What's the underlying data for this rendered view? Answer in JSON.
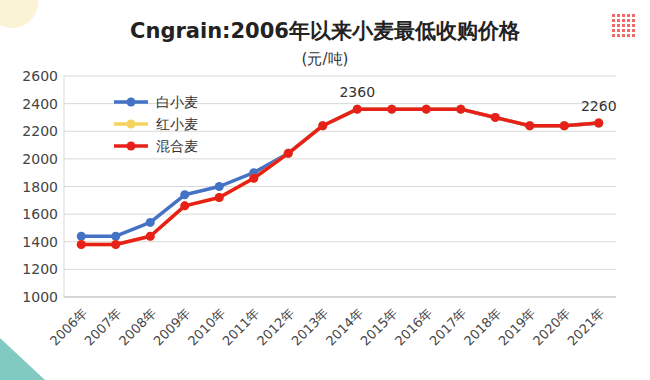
{
  "chart_data": {
    "type": "line",
    "title": "Cngrain:2006年以来小麦最低收购价格",
    "subtitle": "(元/吨)",
    "categories": [
      "2006年",
      "2007年",
      "2008年",
      "2009年",
      "2010年",
      "2011年",
      "2012年",
      "2013年",
      "2014年",
      "2015年",
      "2016年",
      "2017年",
      "2018年",
      "2019年",
      "2020年",
      "2021年"
    ],
    "series": [
      {
        "name": "白小麦",
        "color": "#4472c4",
        "marker": "circle",
        "values": [
          1440,
          1440,
          1540,
          1740,
          1800,
          1900,
          2040,
          2240,
          2360,
          2360,
          2360,
          2360,
          2300,
          2240,
          2240,
          2260
        ]
      },
      {
        "name": "红小麦",
        "color": "#f5d45e",
        "marker": "circle",
        "values": [
          1380,
          1380,
          1440,
          1660,
          1720,
          1860,
          2040,
          2240,
          2360,
          2360,
          2360,
          2360,
          2300,
          2240,
          2240,
          2260
        ]
      },
      {
        "name": "混合麦",
        "color": "#e8201a",
        "marker": "circle",
        "values": [
          1380,
          1380,
          1440,
          1660,
          1720,
          1860,
          2040,
          2240,
          2360,
          2360,
          2360,
          2360,
          2300,
          2240,
          2240,
          2260
        ]
      }
    ],
    "annotations": [
      {
        "category": "2014年",
        "value": 2360
      },
      {
        "category": "2021年",
        "value": 2260
      }
    ],
    "ylim": [
      1000,
      2600
    ],
    "yticks": [
      1000,
      1200,
      1400,
      1600,
      1800,
      2000,
      2200,
      2400,
      2600
    ],
    "grid": true,
    "legend": "upper left"
  }
}
